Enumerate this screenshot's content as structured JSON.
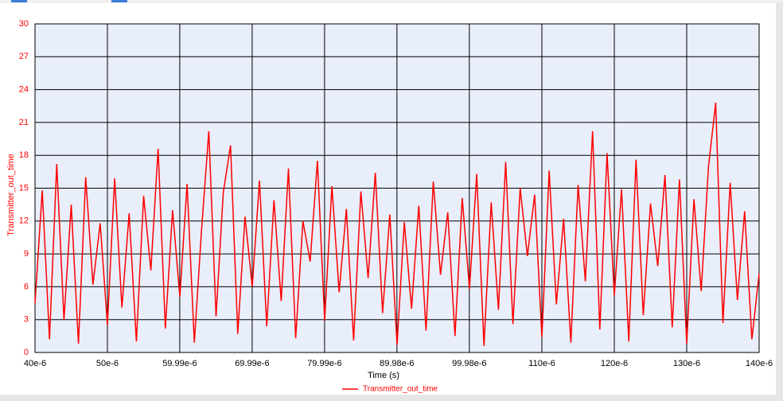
{
  "chart_data": {
    "type": "line",
    "x_label": "Time (s)",
    "y_label": "Transmitter_out_time",
    "x": [
      4e-05,
      4.1e-05,
      4.2e-05,
      4.3e-05,
      4.4e-05,
      4.5e-05,
      4.6e-05,
      4.7e-05,
      4.8e-05,
      4.9e-05,
      5e-05,
      5.1e-05,
      5.2e-05,
      5.3e-05,
      5.4e-05,
      5.5e-05,
      5.6e-05,
      5.7e-05,
      5.8e-05,
      5.9e-05,
      6e-05,
      6.1e-05,
      6.2e-05,
      6.3e-05,
      6.4e-05,
      6.5e-05,
      6.6e-05,
      6.7e-05,
      6.8e-05,
      6.9e-05,
      7e-05,
      7.1e-05,
      7.2e-05,
      7.3e-05,
      7.4e-05,
      7.5e-05,
      7.6e-05,
      7.7e-05,
      7.8e-05,
      7.9e-05,
      8e-05,
      8.1e-05,
      8.2e-05,
      8.3e-05,
      8.4e-05,
      8.5e-05,
      8.6e-05,
      8.7e-05,
      8.8e-05,
      8.9e-05,
      9e-05,
      9.1e-05,
      9.2e-05,
      9.3e-05,
      9.4e-05,
      9.5e-05,
      9.6e-05,
      9.7e-05,
      9.8e-05,
      9.9e-05,
      0.0001,
      0.000101,
      0.000102,
      0.000103,
      0.000104,
      0.000105,
      0.000106,
      0.000107,
      0.000108,
      0.000109,
      0.00011,
      0.000111,
      0.000112,
      0.000113,
      0.000114,
      0.000115,
      0.000116,
      0.000117,
      0.000118,
      0.000119,
      0.00012,
      0.000121,
      0.000122,
      0.000123,
      0.000124,
      0.000125,
      0.000126,
      0.000127,
      0.000128,
      0.000129,
      0.00013,
      0.000131,
      0.000132,
      0.000133,
      0.000134,
      0.000135,
      0.000136,
      0.000137,
      0.000138,
      0.000139,
      0.00014
    ],
    "series": [
      {
        "name": "Transmitter_out_time",
        "color": "#ff0000",
        "values": [
          4.5,
          14.8,
          1.2,
          17.2,
          3.0,
          13.5,
          0.8,
          16.0,
          6.2,
          11.8,
          2.5,
          15.9,
          4.1,
          12.7,
          1.0,
          14.3,
          7.5,
          18.6,
          2.2,
          13.0,
          5.1,
          15.4,
          0.9,
          11.2,
          20.2,
          3.3,
          14.6,
          18.9,
          1.7,
          12.4,
          6.0,
          15.7,
          2.4,
          13.9,
          4.7,
          16.8,
          1.3,
          12.0,
          8.3,
          17.5,
          2.9,
          15.2,
          5.5,
          13.1,
          1.1,
          14.7,
          6.8,
          16.4,
          3.6,
          12.6,
          0.7,
          11.9,
          4.0,
          13.4,
          2.0,
          15.6,
          7.1,
          12.8,
          1.5,
          14.1,
          5.8,
          16.3,
          0.6,
          13.7,
          3.9,
          17.4,
          2.6,
          15.0,
          8.8,
          14.4,
          1.4,
          16.6,
          4.4,
          12.2,
          0.9,
          15.3,
          6.5,
          20.2,
          2.1,
          18.2,
          5.2,
          14.9,
          1.0,
          17.6,
          3.4,
          13.6,
          7.9,
          16.2,
          2.3,
          15.8,
          0.8,
          14.0,
          5.6,
          16.9,
          22.8,
          2.7,
          15.5,
          4.8,
          12.9,
          1.2,
          7.2
        ]
      }
    ],
    "xlim": [
      4e-05,
      0.00014
    ],
    "xticks": [
      {
        "value": 4e-05,
        "label": "40e-6"
      },
      {
        "value": 5e-05,
        "label": "50e-6"
      },
      {
        "value": 5.999e-05,
        "label": "59.99e-6"
      },
      {
        "value": 6.999e-05,
        "label": "69.99e-6"
      },
      {
        "value": 7.999e-05,
        "label": "79.99e-6"
      },
      {
        "value": 8.998e-05,
        "label": "89.98e-6"
      },
      {
        "value": 9.998e-05,
        "label": "99.98e-6"
      },
      {
        "value": 0.00011,
        "label": "110e-6"
      },
      {
        "value": 0.00012,
        "label": "120e-6"
      },
      {
        "value": 0.00013,
        "label": "130e-6"
      },
      {
        "value": 0.00014,
        "label": "140e-6"
      }
    ],
    "ylim": [
      0,
      30
    ],
    "yticks": [
      0,
      3,
      6,
      9,
      12,
      15,
      18,
      21,
      24,
      27,
      30
    ],
    "grid": true
  }
}
